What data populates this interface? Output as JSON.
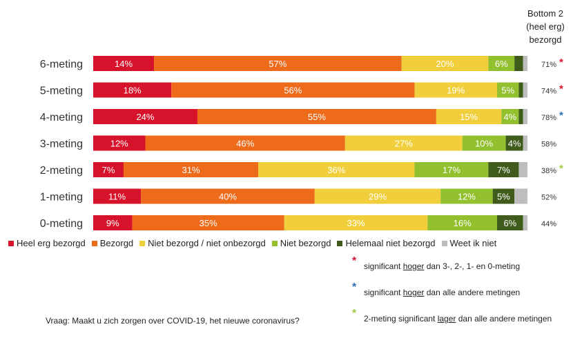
{
  "chart_data": {
    "type": "bar",
    "orientation": "horizontal",
    "stacked": true,
    "categories": [
      "6-meting",
      "5-meting",
      "4-meting",
      "3-meting",
      "2-meting",
      "1-meting",
      "0-meting"
    ],
    "series": [
      {
        "name": "Heel erg bezorgd",
        "color": "#d7132b",
        "values": [
          14,
          18,
          24,
          12,
          7,
          11,
          9
        ],
        "labels": [
          "14%",
          "18%",
          "24%",
          "12%",
          "7%",
          "11%",
          "9%"
        ]
      },
      {
        "name": "Bezorgd",
        "color": "#ee6b1b",
        "values": [
          57,
          56,
          55,
          46,
          31,
          40,
          35
        ],
        "labels": [
          "57%",
          "56%",
          "55%",
          "46%",
          "31%",
          "40%",
          "35%"
        ]
      },
      {
        "name": "Niet bezorgd / niet onbezorgd",
        "color": "#f1cf3c",
        "values": [
          20,
          19,
          15,
          27,
          36,
          29,
          33
        ],
        "labels": [
          "20%",
          "19%",
          "15%",
          "27%",
          "36%",
          "29%",
          "33%"
        ]
      },
      {
        "name": "Niet bezorgd",
        "color": "#92c02f",
        "values": [
          6,
          5,
          4,
          10,
          17,
          12,
          16
        ],
        "labels": [
          "6%",
          "5%",
          "4%",
          "10%",
          "17%",
          "12%",
          "16%"
        ]
      },
      {
        "name": "Helemaal niet bezorgd",
        "color": "#3f5c1d",
        "values": [
          2,
          1,
          1,
          4,
          7,
          5,
          6
        ],
        "labels": [
          "",
          "",
          "",
          "4%",
          "7%",
          "5%",
          "6%"
        ]
      },
      {
        "name": "Weet ik niet",
        "color": "#bdbdbd",
        "values": [
          1,
          1,
          1,
          1,
          2,
          3,
          1
        ],
        "labels": [
          "",
          "",
          "",
          "",
          "",
          "",
          ""
        ]
      }
    ],
    "bottom2": {
      "header": [
        "Bottom 2",
        "(heel erg)",
        "bezorgd"
      ],
      "values": [
        "71%",
        "74%",
        "78%",
        "58%",
        "38%",
        "52%",
        "44%"
      ],
      "stars": [
        "red",
        "red",
        "blue",
        "",
        "green",
        "",
        ""
      ]
    },
    "xlim": [
      0,
      100
    ],
    "legend_position": "bottom"
  },
  "star_colors": {
    "red": "#d7132b",
    "blue": "#2a6fb5",
    "green": "#9ccc3f"
  },
  "notes": [
    {
      "star": "red",
      "pre": "significant ",
      "u": "hoger",
      "post": " dan 3-, 2-, 1- en 0-meting"
    },
    {
      "star": "blue",
      "pre": "significant ",
      "u": "hoger",
      "post": " dan alle andere metingen"
    },
    {
      "star": "green",
      "pre": "2-meting significant ",
      "u": "lager",
      "post": " dan alle andere metingen"
    }
  ],
  "question": "Vraag: Maakt u zich zorgen over COVID-19, het nieuwe coronavirus?"
}
